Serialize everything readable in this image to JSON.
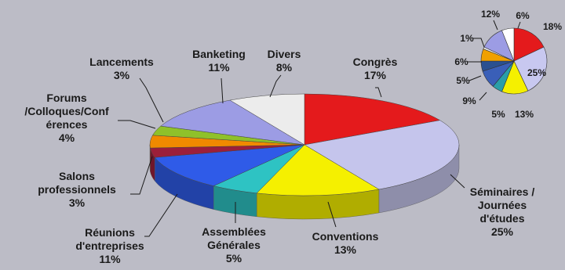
{
  "chart_data": [
    {
      "type": "pie",
      "title": "",
      "categories": [
        "Congrès",
        "Séminaires / Journées d'études",
        "Conventions",
        "Assemblées Générales",
        "Réunions d'entreprises",
        "Salons professionnels",
        "Forums /Colloques/Conf érences",
        "Lancements",
        "Banketing",
        "Divers"
      ],
      "values": [
        17,
        25,
        13,
        5,
        11,
        3,
        4,
        3,
        11,
        8
      ],
      "label_lines": [
        [
          "Congrès",
          "17%"
        ],
        [
          "Séminaires /",
          "Journées",
          "d'études",
          "25%"
        ],
        [
          "Conventions",
          "13%"
        ],
        [
          "Assemblées",
          "Générales",
          "5%"
        ],
        [
          "Réunions",
          "d'entreprises",
          "11%"
        ],
        [
          "Salons",
          "professionnels",
          "3%"
        ],
        [
          "Forums",
          "/Colloques/Conf",
          "érences",
          "4%"
        ],
        [
          "Lancements",
          "3%"
        ],
        [
          "Banketing",
          "11%"
        ],
        [
          "Divers",
          "8%"
        ]
      ],
      "colors": [
        "#e41a1c",
        "#c5c5ec",
        "#f5f000",
        "#2ec3c3",
        "#2f5be8",
        "#9c1f3a",
        "#f08a00",
        "#8fc12a",
        "#9c9ce4",
        "#ececec"
      ]
    },
    {
      "type": "pie",
      "title": "",
      "values": [
        18,
        25,
        13,
        5,
        9,
        5,
        6,
        1,
        12,
        6
      ],
      "labels": [
        "18%",
        "25%",
        "13%",
        "5%",
        "9%",
        "5%",
        "6%",
        "1%",
        "12%",
        "6%"
      ],
      "colors": [
        "#e41a1c",
        "#c8c8f0",
        "#f5f000",
        "#2a9ea8",
        "#3a5fb8",
        "#2a5090",
        "#f0a000",
        "#f0f0f0",
        "#9c9ce4",
        "#ffffff"
      ]
    }
  ]
}
